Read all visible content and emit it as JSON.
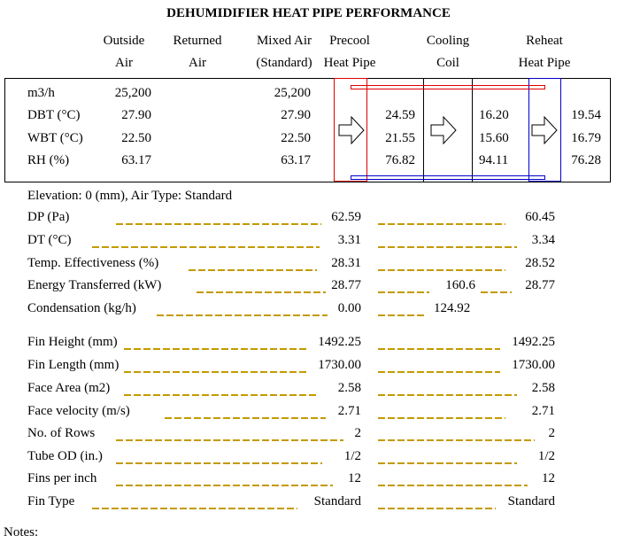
{
  "title": "DEHUMIDIFIER HEAT PIPE PERFORMANCE",
  "headers": [
    {
      "line1": "Outside",
      "line2": "Air"
    },
    {
      "line1": "Returned",
      "line2": "Air"
    },
    {
      "line1": "Mixed Air",
      "line2": "(Standard)"
    },
    {
      "line1": "Precool",
      "line2": "Heat Pipe"
    },
    {
      "line1": "Cooling",
      "line2": "Coil"
    },
    {
      "line1": "Reheat",
      "line2": "Heat Pipe"
    }
  ],
  "conditions": {
    "labels": [
      "m3/h",
      "DBT (°C)",
      "WBT (°C)",
      "RH (%)"
    ],
    "outside": [
      "25,200",
      "27.90",
      "22.50",
      "63.17"
    ],
    "mixed": [
      "25,200",
      "27.90",
      "22.50",
      "63.17"
    ],
    "after_precool": [
      "24.59",
      "21.55",
      "76.82"
    ],
    "after_coil": [
      "16.20",
      "15.60",
      "94.11"
    ],
    "after_reheat": [
      "19.54",
      "16.79",
      "76.28"
    ]
  },
  "elevation_line": "Elevation: 0 (mm),  Air Type: Standard",
  "performance": [
    {
      "label": "DP (Pa)",
      "precool": "62.59",
      "reheat": "60.45"
    },
    {
      "label": "DT (°C)",
      "precool": "3.31",
      "reheat": "3.34"
    },
    {
      "label": "Temp. Effectiveness (%)",
      "precool": "28.31",
      "reheat": "28.52"
    },
    {
      "label": "Energy Transferred (kW)",
      "precool": "28.77",
      "coil": "160.6",
      "reheat": "28.77"
    },
    {
      "label": "Condensation (kg/h)",
      "precool": "0.00",
      "coil": "124.92"
    }
  ],
  "specs": [
    {
      "label": "Fin Height (mm)",
      "precool": "1492.25",
      "reheat": "1492.25"
    },
    {
      "label": "Fin Length (mm)",
      "precool": "1730.00",
      "reheat": "1730.00"
    },
    {
      "label": "Face Area (m2)",
      "precool": "2.58",
      "reheat": "2.58"
    },
    {
      "label": "Face velocity (m/s)",
      "precool": "2.71",
      "reheat": "2.71"
    },
    {
      "label": "No. of Rows",
      "precool": "2",
      "reheat": "2"
    },
    {
      "label": "Tube OD (in.)",
      "precool": "1/2",
      "reheat": "1/2"
    },
    {
      "label": "Fins per inch",
      "precool": "12",
      "reheat": "12"
    },
    {
      "label": "Fin Type",
      "precool": "Standard",
      "reheat": "Standard"
    }
  ],
  "notes_label": "Notes:",
  "colors": {
    "precool": "#e00000",
    "reheat": "#0000cc",
    "leader": "#c49a00"
  }
}
